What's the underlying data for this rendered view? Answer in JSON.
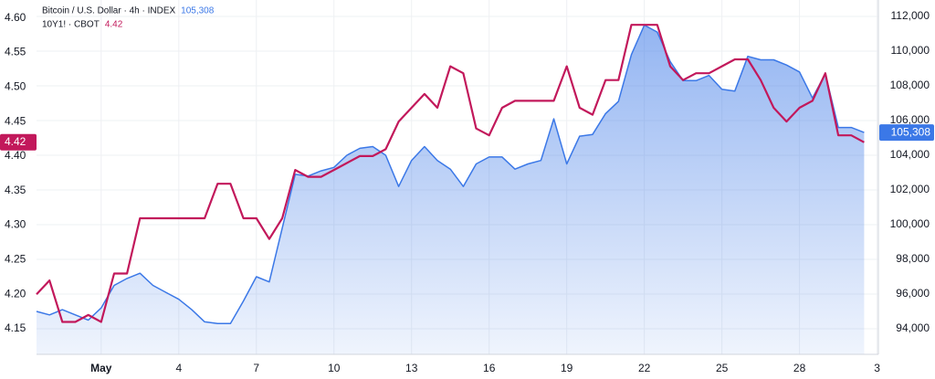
{
  "chart_data": {
    "type": "line",
    "x": [
      -1.5,
      -1,
      -0.5,
      0,
      0.5,
      1,
      1.5,
      2,
      2.5,
      3,
      3.5,
      4,
      4.5,
      5,
      5.5,
      6,
      6.5,
      7,
      7.5,
      8,
      8.5,
      9,
      9.5,
      10,
      10.5,
      11,
      11.5,
      12,
      12.5,
      13,
      13.5,
      14,
      14.5,
      15,
      15.5,
      16,
      16.5,
      17,
      17.5,
      18,
      18.5,
      19,
      19.5,
      20,
      20.5,
      21,
      21.5,
      22,
      22.5,
      23,
      23.5,
      24,
      24.5,
      25,
      25.5,
      26,
      26.5,
      27,
      27.5,
      28,
      28.5,
      29,
      29.5,
      30,
      30.5
    ],
    "series": [
      {
        "name": "Bitcoin / U.S. Dollar · 4h · INDEX",
        "color": "#3b78e7",
        "axis": "y2",
        "last_label": "105,308",
        "values": [
          95000,
          94800,
          95100,
          94800,
          94500,
          95200,
          96500,
          96900,
          97200,
          96500,
          96100,
          95700,
          95100,
          94400,
          94300,
          94300,
          95600,
          97000,
          96700,
          99800,
          102900,
          102800,
          103100,
          103300,
          104000,
          104400,
          104500,
          104000,
          102200,
          103700,
          104500,
          103700,
          103200,
          102200,
          103500,
          103900,
          103900,
          103200,
          103500,
          103700,
          106100,
          103500,
          105100,
          105200,
          106400,
          107100,
          109800,
          111500,
          111100,
          109400,
          108300,
          108300,
          108600,
          107800,
          107700,
          109700,
          109500,
          109500,
          109200,
          108800,
          107300,
          108700,
          105600,
          105600,
          105308
        ]
      },
      {
        "name": "10Y1! · CBOT",
        "color": "#c2185b",
        "axis": "y",
        "last_label": "4.42",
        "values": [
          4.2,
          4.22,
          4.16,
          4.16,
          4.17,
          4.16,
          4.23,
          4.23,
          4.31,
          4.31,
          4.31,
          4.31,
          4.31,
          4.31,
          4.36,
          4.36,
          4.31,
          4.31,
          4.28,
          4.31,
          4.38,
          4.37,
          4.37,
          4.38,
          4.39,
          4.4,
          4.4,
          4.41,
          4.45,
          4.47,
          4.49,
          4.47,
          4.53,
          4.52,
          4.44,
          4.43,
          4.47,
          4.48,
          4.48,
          4.48,
          4.48,
          4.53,
          4.47,
          4.46,
          4.51,
          4.51,
          4.59,
          4.59,
          4.59,
          4.53,
          4.51,
          4.52,
          4.52,
          4.53,
          4.54,
          4.54,
          4.51,
          4.47,
          4.45,
          4.47,
          4.48,
          4.52,
          4.43,
          4.43,
          4.42
        ]
      }
    ],
    "xlim": [
      -1.5,
      31.05
    ],
    "xticks": [
      {
        "value": 1,
        "label": "May"
      },
      4,
      7,
      10,
      13,
      16,
      19,
      22,
      25,
      28,
      {
        "value": 31,
        "label": "3"
      }
    ],
    "ylim": [
      4.113,
      4.626
    ],
    "yticks": [
      4.15,
      {
        "value": 4.2,
        "label": "4.20"
      },
      4.25,
      {
        "value": 4.3,
        "label": "4.30"
      },
      4.35,
      {
        "value": 4.4,
        "label": "4.40"
      },
      4.45,
      {
        "value": 4.5,
        "label": "4.50"
      },
      4.55,
      {
        "value": 4.6,
        "label": "4.60"
      }
    ],
    "y2lim": [
      92527,
      112947
    ],
    "y2ticks": [
      {
        "value": 94000,
        "label": "94,000"
      },
      {
        "value": 96000,
        "label": "96,000"
      },
      {
        "value": 98000,
        "label": "98,000"
      },
      {
        "value": 100000,
        "label": "100,000"
      },
      {
        "value": 102000,
        "label": "102,000"
      },
      {
        "value": 104000,
        "label": "104,000"
      },
      {
        "value": 106000,
        "label": "106,000"
      },
      {
        "value": 108000,
        "label": "108,000"
      },
      {
        "value": 110000,
        "label": "110,000"
      },
      {
        "value": 112000,
        "label": "112,000"
      }
    ],
    "grid": true
  }
}
